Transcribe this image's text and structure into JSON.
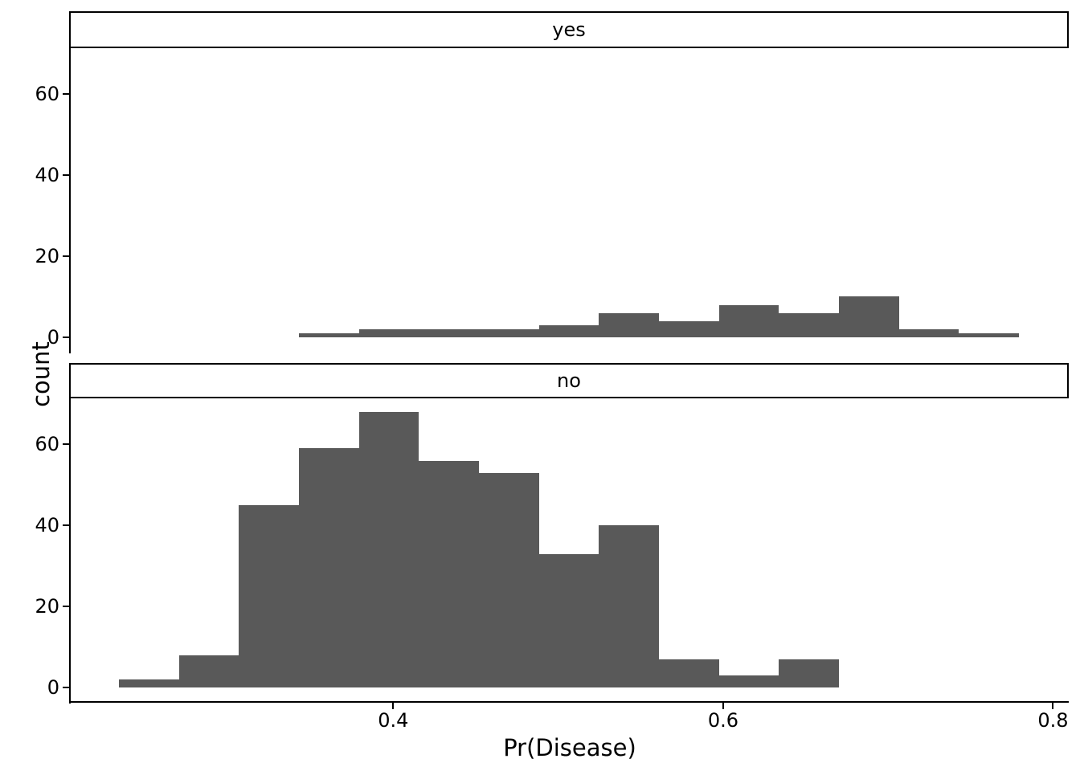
{
  "chart_data": {
    "type": "bar",
    "subtype": "faceted-histogram",
    "title": "",
    "xlabel": "Pr(Disease)",
    "ylabel": "count",
    "facets": [
      {
        "label": "yes",
        "counts": [
          0,
          0,
          0,
          1,
          2,
          2,
          2,
          3,
          6,
          4,
          8,
          6,
          10,
          2,
          1
        ]
      },
      {
        "label": "no",
        "counts": [
          2,
          8,
          45,
          59,
          68,
          56,
          53,
          33,
          40,
          7,
          3,
          7,
          0,
          0,
          0
        ]
      }
    ],
    "bin_start": 0.2337,
    "bin_width": 0.03637,
    "x_ticks": [
      0.4,
      0.6,
      0.8
    ],
    "x_tick_labels": [
      "0.4",
      "0.6",
      "0.8"
    ],
    "y_ticks": [
      0,
      20,
      40,
      60
    ],
    "y_tick_labels": [
      "0",
      "20",
      "40",
      "60"
    ],
    "xlim": [
      0.2045,
      0.8095
    ],
    "ylim": [
      -3.4,
      71.4
    ],
    "bar_color": "#595959",
    "axis_color": "#000000",
    "grid": false,
    "legend_position": "none",
    "facet_layout": "1-column, shared x and y axes"
  }
}
